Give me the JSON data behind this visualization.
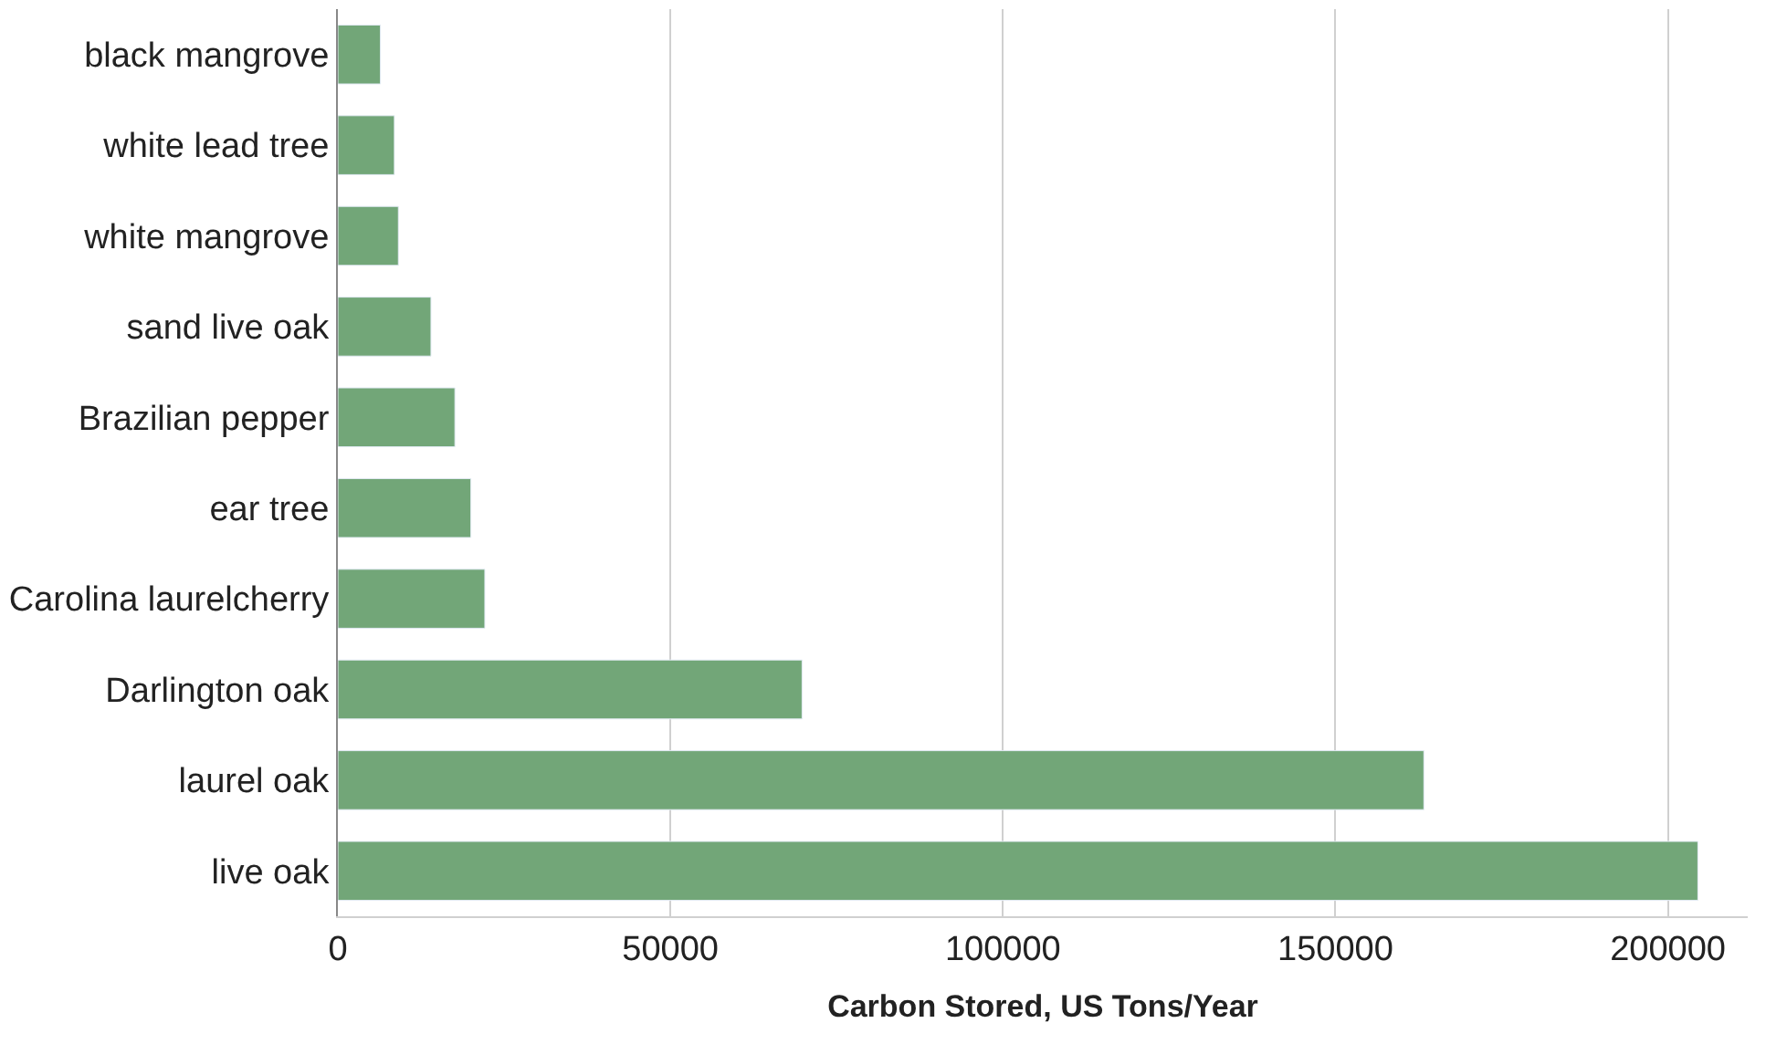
{
  "chart_data": {
    "type": "bar",
    "orientation": "horizontal",
    "xlabel": "Carbon Stored, US Tons/Year",
    "categories": [
      "black mangrove",
      "white lead tree",
      "white mangrove",
      "sand live oak",
      "Brazilian pepper",
      "ear tree",
      "Carolina laurelcherry",
      "Darlington oak",
      "laurel oak",
      "live oak"
    ],
    "values": [
      6400,
      8500,
      9100,
      14000,
      17600,
      20000,
      22100,
      69800,
      163300,
      204500
    ],
    "color": "#72a678",
    "xlim": [
      0,
      212000
    ],
    "xticks": [
      0,
      50000,
      100000,
      150000,
      200000
    ],
    "grid": "x"
  }
}
